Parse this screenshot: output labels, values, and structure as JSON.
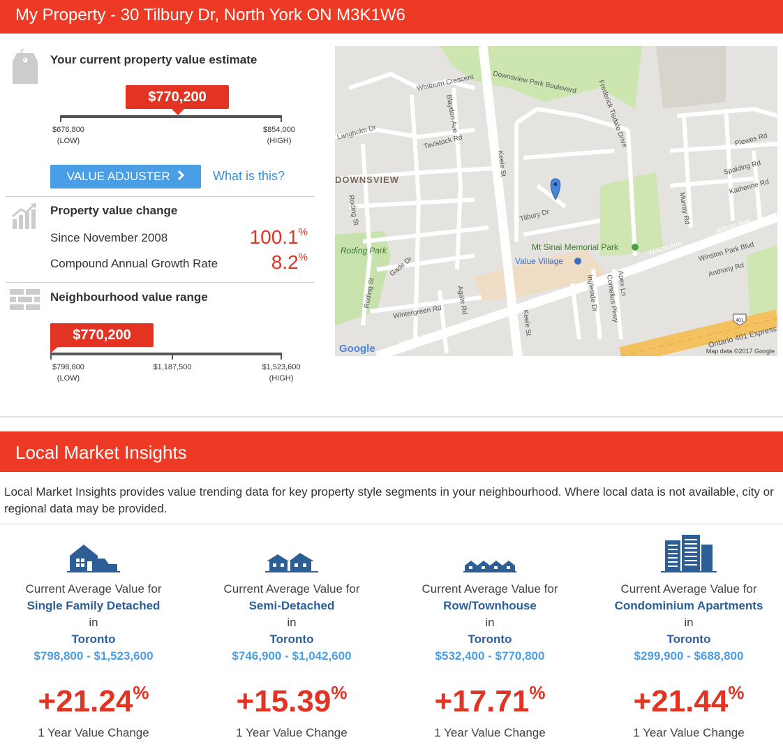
{
  "header": {
    "title": "My Property - 30 Tilbury Dr, North York ON M3K1W6"
  },
  "estimate": {
    "title": "Your current property value estimate",
    "value": "$770,200",
    "low": "$676,800",
    "high": "$854,000",
    "low_tag": "(LOW)",
    "high_tag": "(HIGH)",
    "adjuster_label": "VALUE ADJUSTER",
    "what_link": "What is this?"
  },
  "change": {
    "title": "Property value change",
    "since_label": "Since November 2008",
    "since_value": "100.1",
    "cagr_label": "Compound Annual Growth Rate",
    "cagr_value": "8.2",
    "pct": "%"
  },
  "range": {
    "title": "Neighbourhood value range",
    "value": "$770,200",
    "low": "$798,800",
    "mid": "$1,187,500",
    "high": "$1,523,600",
    "low_tag": "(LOW)",
    "high_tag": "(HIGH)"
  },
  "map": {
    "labels": {
      "whitburn": "Whitburn Crescent",
      "downsview_blvd": "Downsview Park Boulevard",
      "frederick": "Frederick Tisdale Drive",
      "blaydon": "Blaydon Ave",
      "langholm": "Langholm Dr",
      "tavistock": "Tavistock Rd",
      "keele1": "Keele St",
      "keele2": "Keele St",
      "plewes": "Plewes Rd",
      "spalding": "Spalding Rd",
      "katherine": "Katherine Rd",
      "downsview": "DOWNSVIEW",
      "roding_st": "Roding St",
      "tilbury": "Tilbury Dr",
      "murray": "Murray Rd",
      "wilson1": "Wilson Ave",
      "wilson2": "Wilson Ave",
      "wilson3": "Wilson Ave",
      "wilson4": "Wilson Ave",
      "winston": "Winston Park Blvd",
      "anthony": "Anthony Rd",
      "roding_park": "Roding Park",
      "mt_sinai": "Mt Sinai Memorial Park",
      "value_village": "Value Village",
      "gade": "Gade Dr",
      "roding_st2": "Roding St",
      "agate": "Agate Rd",
      "ingleside": "Ingleside Dr",
      "cornelius": "Cornelius Pkwy",
      "apex": "Apex Ln",
      "wintergreen": "Wintergreen Rd",
      "hwy": "401",
      "ontario401": "Ontario 401 Express",
      "google": "Google",
      "attribution": "Map data ©2017 Google"
    }
  },
  "insights": {
    "title": "Local Market Insights",
    "intro": "Local Market Insights provides value trending data for key property style segments in your neighbourhood. Where local data is not available, city or regional data may be provided.",
    "columns": [
      {
        "icon": "single-family-house-icon",
        "lead": "Current Average Value for",
        "type": "Single Family Detached",
        "in": "in",
        "city": "Toronto",
        "range": "$798,800 - $1,523,600",
        "change": "+21.24",
        "pct": "%",
        "caption": "1 Year Value Change"
      },
      {
        "icon": "semi-detached-house-icon",
        "lead": "Current Average Value for",
        "type": "Semi-Detached",
        "in": "in",
        "city": "Toronto",
        "range": "$746,900 - $1,042,600",
        "change": "+15.39",
        "pct": "%",
        "caption": "1 Year Value Change"
      },
      {
        "icon": "townhouse-icon",
        "lead": "Current Average Value for",
        "type": "Row/Townhouse",
        "in": "in",
        "city": "Toronto",
        "range": "$532,400 - $770,800",
        "change": "+17.71",
        "pct": "%",
        "caption": "1 Year Value Change"
      },
      {
        "icon": "condo-building-icon",
        "lead": "Current Average Value for",
        "type": "Condominium Apartments",
        "in": "in",
        "city": "Toronto",
        "range": "$299,900 - $688,800",
        "change": "+21.44",
        "pct": "%",
        "caption": "1 Year Value Change"
      }
    ]
  },
  "colors": {
    "brand_red": "#ee3a24",
    "button_blue": "#4a9ee6",
    "link_blue": "#3a8fd8",
    "navy": "#2d5f96",
    "value_red": "#e23323"
  }
}
